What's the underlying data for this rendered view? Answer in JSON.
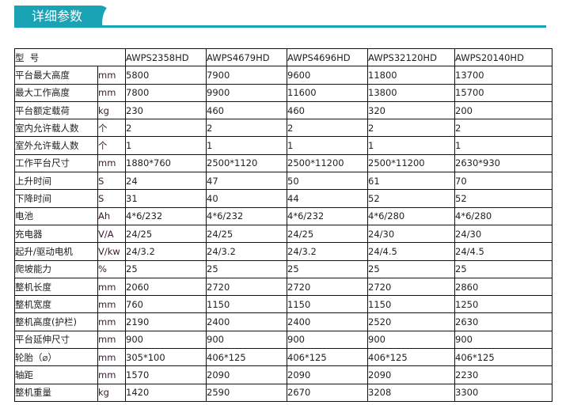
{
  "title": "详细参数",
  "header": {
    "label": "型  号",
    "models": [
      "AWPS2358HD",
      "AWPS4679HD",
      "AWPS4696HD",
      "AWPS32120HD",
      "AWPS20140HD"
    ]
  },
  "rows": [
    {
      "name": "平台最大高度",
      "unit": "mm",
      "values": [
        "5800",
        "7900",
        "9600",
        "11800",
        "13700"
      ]
    },
    {
      "name": "最大工作高度",
      "unit": "mm",
      "values": [
        "7800",
        "9900",
        "11600",
        "13800",
        "15700"
      ]
    },
    {
      "name": "平台额定载荷",
      "unit": "kg",
      "values": [
        "230",
        "460",
        "460",
        "320",
        "200"
      ]
    },
    {
      "name": "室内允许载人数",
      "unit": "个",
      "values": [
        "2",
        "2",
        "2",
        "2",
        "2"
      ]
    },
    {
      "name": "室外允许载人数",
      "unit": "个",
      "values": [
        "1",
        "1",
        "1",
        "1",
        "1"
      ]
    },
    {
      "name": "工作平台尺寸",
      "unit": "mm",
      "values": [
        "1880*760",
        "2500*1120",
        "2500*11200",
        "2500*11200",
        "2630*930"
      ]
    },
    {
      "name": "上升时间",
      "unit": "S",
      "values": [
        "24",
        "47",
        "50",
        "61",
        "70"
      ]
    },
    {
      "name": "下降时间",
      "unit": "S",
      "values": [
        "31",
        "40",
        "44",
        "52",
        "52"
      ]
    },
    {
      "name": "电池",
      "unit": "Ah",
      "values": [
        "4*6/232",
        "4*6/232",
        "4*6/232",
        "4*6/280",
        "4*6/280"
      ]
    },
    {
      "name": "充电器",
      "unit": "V/A",
      "values": [
        "24/25",
        "24/25",
        "24/25",
        "24/30",
        "24/30"
      ]
    },
    {
      "name": "起升/驱动电机",
      "unit": "V/kw",
      "values": [
        "24/3.2",
        "24/3.2",
        "24/3.2",
        "24/4.5",
        "24/4.5"
      ]
    },
    {
      "name": "爬坡能力",
      "unit": "%",
      "values": [
        "25",
        "25",
        "25",
        "25",
        "25"
      ]
    },
    {
      "name": "整机长度",
      "unit": "mm",
      "values": [
        "2060",
        "2720",
        "2720",
        "2720",
        "2860"
      ]
    },
    {
      "name": "整机宽度",
      "unit": "mm",
      "values": [
        "760",
        "1150",
        "1150",
        "1150",
        "1250"
      ]
    },
    {
      "name": "整机高度(护栏)",
      "unit": "mm",
      "values": [
        "2190",
        "2400",
        "2400",
        "2520",
        "2630"
      ]
    },
    {
      "name": "平台延伸尺寸",
      "unit": "mm",
      "values": [
        "900",
        "900",
        "900",
        "900",
        "900"
      ]
    },
    {
      "name": "轮胎（⌀）",
      "unit": "mm",
      "values": [
        "305*100",
        "406*125",
        "406*125",
        "406*125",
        "406*125"
      ]
    },
    {
      "name": "轴距",
      "unit": "mm",
      "values": [
        "1570",
        "2090",
        "2090",
        "2090",
        "2230"
      ]
    },
    {
      "name": "整机重量",
      "unit": "kg",
      "values": [
        "1420",
        "2590",
        "2670",
        "3208",
        "3300"
      ]
    }
  ],
  "colors": {
    "accent": "#1aa3b5"
  }
}
